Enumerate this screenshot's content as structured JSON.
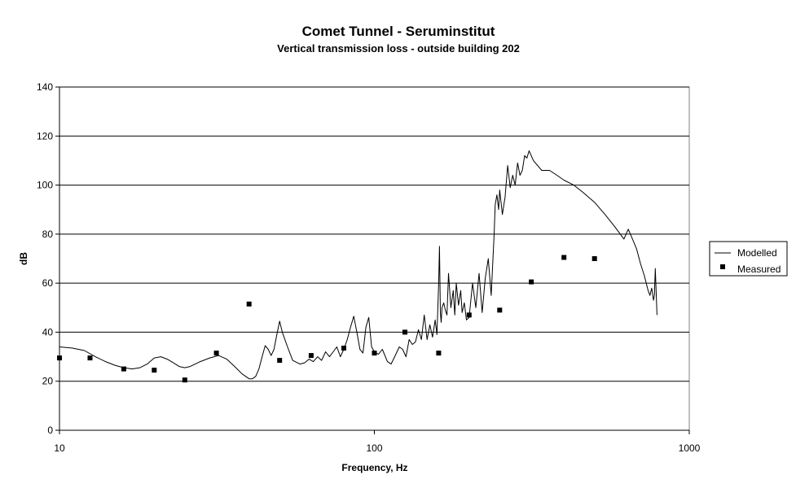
{
  "chart_data": {
    "type": "line",
    "title": "Comet Tunnel - Seruminstitut",
    "subtitle": "Vertical transmission loss - outside building 202",
    "xlabel": "Frequency, Hz",
    "ylabel": "dB",
    "x_scale": "log",
    "xlim": [
      10,
      1000
    ],
    "ylim": [
      0,
      140
    ],
    "x_ticks": [
      10,
      100,
      1000
    ],
    "y_ticks": [
      0,
      20,
      40,
      60,
      80,
      100,
      120,
      140
    ],
    "grid": "horizontal",
    "legend_position": "right",
    "colors": {
      "line": "#000000",
      "marker": "#000000",
      "grid": "#000000",
      "background": "#ffffff"
    },
    "series": [
      {
        "name": "Modelled",
        "style": "line",
        "x": [
          10,
          11,
          12,
          13,
          14,
          15,
          16,
          17,
          18,
          19,
          20,
          21,
          22,
          23,
          24,
          25,
          26,
          28,
          30,
          32,
          34,
          36,
          38,
          40,
          41,
          42,
          43,
          44,
          45,
          46,
          47,
          48,
          49,
          50,
          51,
          53,
          55,
          58,
          60,
          62,
          64,
          66,
          68,
          70,
          72,
          74,
          76,
          78,
          80,
          82,
          84,
          86,
          88,
          90,
          92,
          94,
          96,
          98,
          100,
          103,
          106,
          110,
          113,
          116,
          120,
          123,
          126,
          129,
          132,
          135,
          138,
          141,
          144,
          147,
          150,
          153,
          156,
          158,
          160,
          161,
          162,
          163,
          164,
          166,
          168,
          170,
          172,
          175,
          178,
          180,
          182,
          185,
          188,
          190,
          193,
          196,
          200,
          205,
          210,
          215,
          220,
          225,
          230,
          235,
          240,
          242,
          245,
          248,
          250,
          255,
          260,
          265,
          270,
          275,
          280,
          285,
          290,
          295,
          300,
          305,
          310,
          320,
          340,
          360,
          380,
          400,
          430,
          460,
          500,
          540,
          580,
          620,
          640,
          660,
          680,
          700,
          720,
          740,
          750,
          760,
          770,
          775,
          780,
          790
        ],
        "y": [
          34,
          33.5,
          32.5,
          30,
          28,
          26.5,
          25.5,
          25,
          25.5,
          27,
          29.5,
          30,
          29,
          27.5,
          26,
          25.5,
          26,
          28,
          29.5,
          30.5,
          29,
          26,
          23,
          21,
          21,
          22,
          25,
          30,
          34.5,
          33,
          30.5,
          33,
          39,
          44.5,
          40,
          34,
          28.5,
          27,
          27.5,
          29,
          28,
          30,
          28.5,
          32,
          30,
          32,
          34,
          30,
          33,
          37,
          42,
          46.5,
          40,
          33,
          31.5,
          42,
          46,
          34,
          32,
          31,
          33,
          28,
          27,
          30,
          34,
          33,
          30,
          37,
          35,
          36,
          41,
          37,
          47,
          37,
          43,
          38,
          45,
          39,
          60,
          75,
          48,
          44,
          50,
          52,
          49,
          47,
          64,
          50,
          57,
          47,
          60,
          51,
          57,
          48,
          52,
          45,
          46,
          60,
          50,
          64,
          48,
          62,
          70,
          55,
          80,
          92,
          96,
          90,
          98,
          88,
          95,
          108,
          99,
          104,
          100,
          109,
          104,
          106,
          112,
          111,
          114,
          110,
          106,
          106,
          104,
          102,
          100,
          97,
          93,
          88,
          83,
          78,
          82,
          78,
          74,
          68,
          63,
          57,
          55,
          58,
          53,
          55,
          66,
          47
        ]
      },
      {
        "name": "Measured",
        "style": "marker",
        "x": [
          10,
          12.5,
          16,
          20,
          25,
          31.5,
          40,
          50,
          63,
          80,
          100,
          125,
          160,
          200,
          250,
          315,
          400,
          500
        ],
        "y": [
          29.5,
          29.5,
          25,
          24.5,
          20.5,
          31.5,
          51.5,
          28.5,
          30.5,
          33.5,
          31.5,
          40,
          31.5,
          47,
          49,
          60.5,
          70.5,
          70
        ]
      }
    ]
  }
}
